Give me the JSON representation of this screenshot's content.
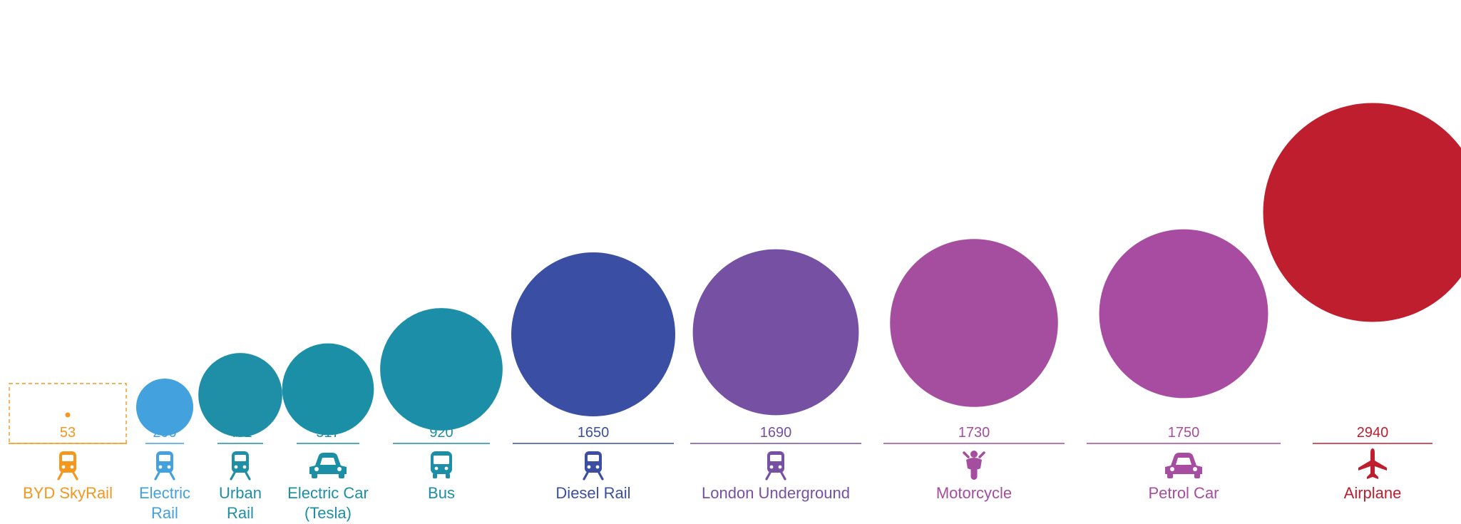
{
  "chart_data": {
    "type": "bubble",
    "categories": [
      {
        "name_lines": [
          "BYD SkyRail"
        ],
        "value": 53,
        "label": "53",
        "color": "#f5961d",
        "icon": "train-front-icon",
        "highlight": true
      },
      {
        "name_lines": [
          "Electric",
          "Rail"
        ],
        "value": 200,
        "label": "200",
        "color": "#43a1de",
        "icon": "train-front-icon"
      },
      {
        "name_lines": [
          "Urban",
          "Rail"
        ],
        "value": 432,
        "label": "432",
        "color": "#1f8fa8",
        "icon": "train-front-icon"
      },
      {
        "name_lines": [
          "Electric Car",
          "(Tesla)"
        ],
        "value": 517,
        "label": "517",
        "color": "#1b8fa6",
        "icon": "car-icon"
      },
      {
        "name_lines": [
          "Bus"
        ],
        "value": 920,
        "label": "920",
        "color": "#1c8ea8",
        "icon": "bus-icon"
      },
      {
        "name_lines": [
          "Diesel Rail"
        ],
        "value": 1650,
        "label": "1650",
        "color": "#3a4fa3",
        "icon": "train-front-icon"
      },
      {
        "name_lines": [
          "London Underground"
        ],
        "value": 1690,
        "label": "1690",
        "color": "#7650a3",
        "icon": "train-front-icon"
      },
      {
        "name_lines": [
          "Motorcycle"
        ],
        "value": 1730,
        "label": "1730",
        "color": "#a54d9f",
        "icon": "motorcycle-icon"
      },
      {
        "name_lines": [
          "Petrol Car"
        ],
        "value": 1750,
        "label": "1750",
        "color": "#a74ca0",
        "icon": "car-icon"
      },
      {
        "name_lines": [
          "Airplane"
        ],
        "value": 2940,
        "label": "2940",
        "color": "#bf1e2e",
        "icon": "airplane-icon"
      }
    ],
    "legend": "none",
    "grid": false
  }
}
